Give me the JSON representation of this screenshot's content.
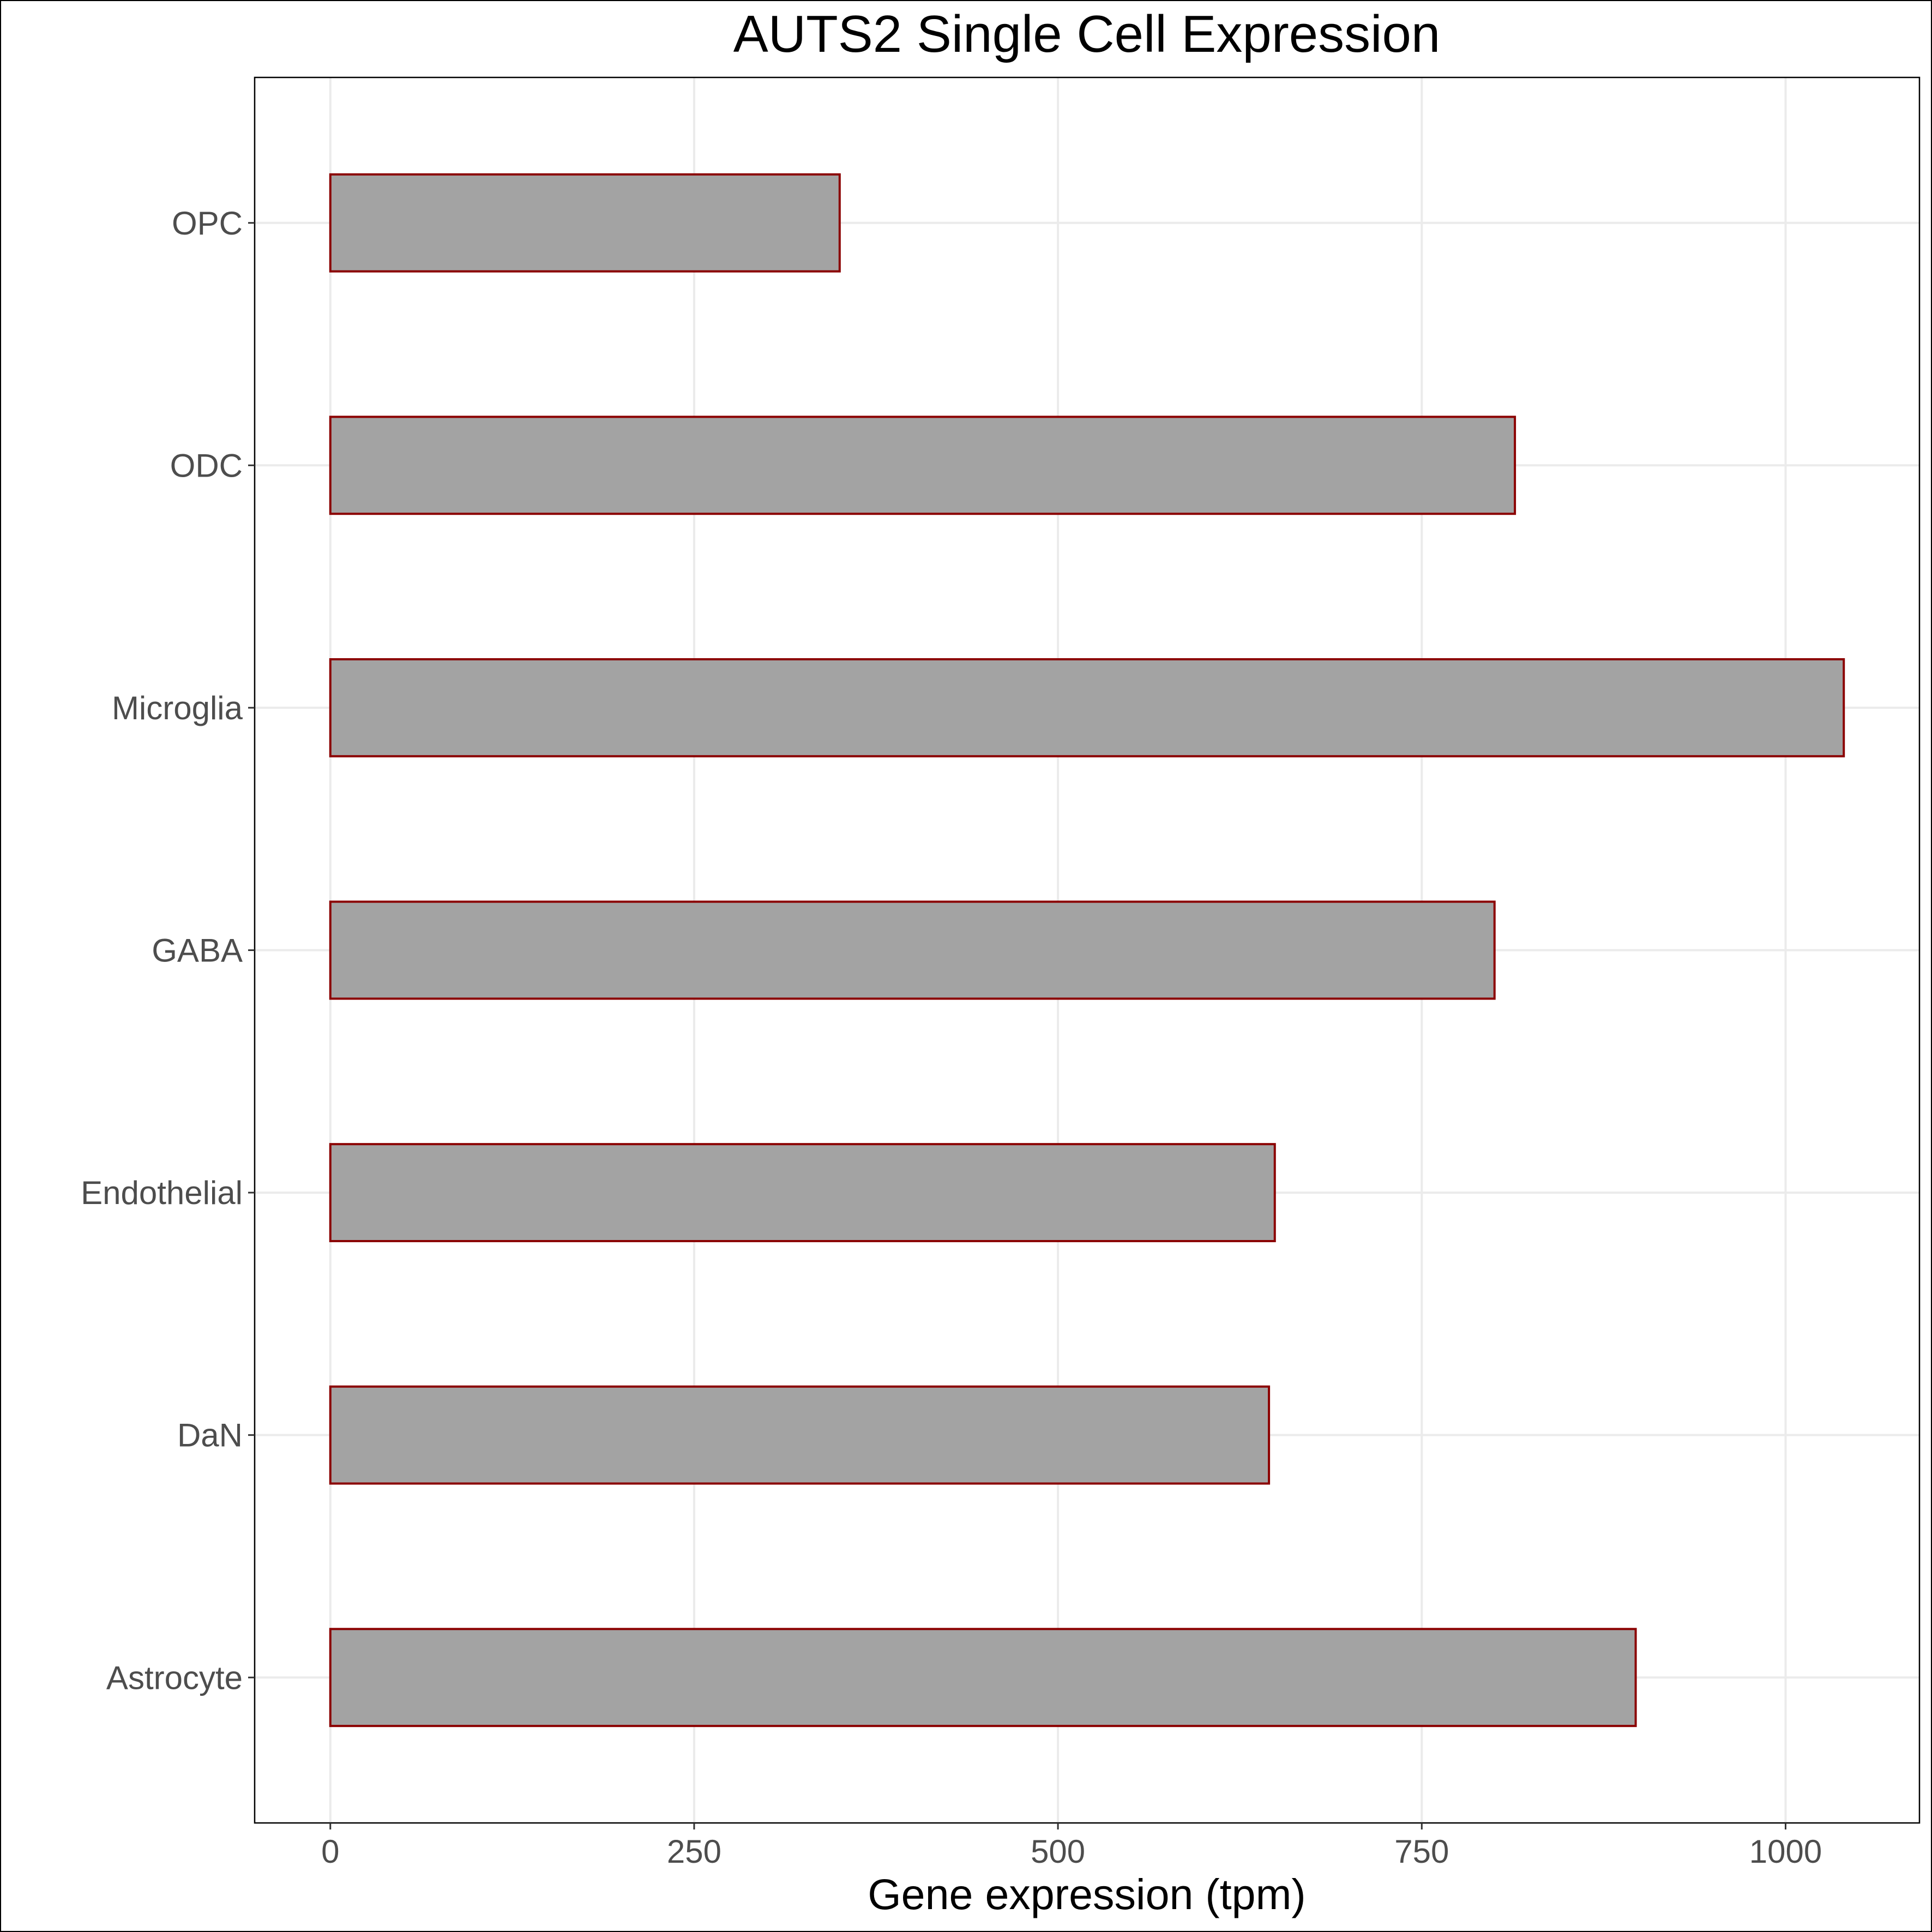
{
  "chart_data": {
    "type": "bar",
    "orientation": "horizontal",
    "title": "AUTS2 Single Cell Expression",
    "xlabel": "Gene expression (tpm)",
    "ylabel": "",
    "categories": [
      "Astrocyte",
      "DaN",
      "Endothelial",
      "GABA",
      "Microglia",
      "ODC",
      "OPC"
    ],
    "values": [
      897,
      645,
      649,
      800,
      1040,
      814,
      350
    ],
    "xlim": [
      -52,
      1092
    ],
    "xticks": [
      0,
      250,
      500,
      750,
      1000
    ],
    "xtick_labels": [
      "0",
      "250",
      "500",
      "750",
      "1000"
    ],
    "grid": true,
    "legend": "none",
    "colors": {
      "bar_fill": "#a3a3a3",
      "bar_outline": "#8b0000",
      "grid": "#ebebeb",
      "panel_border": "#000000",
      "tick_text": "#4d4d4d"
    }
  }
}
